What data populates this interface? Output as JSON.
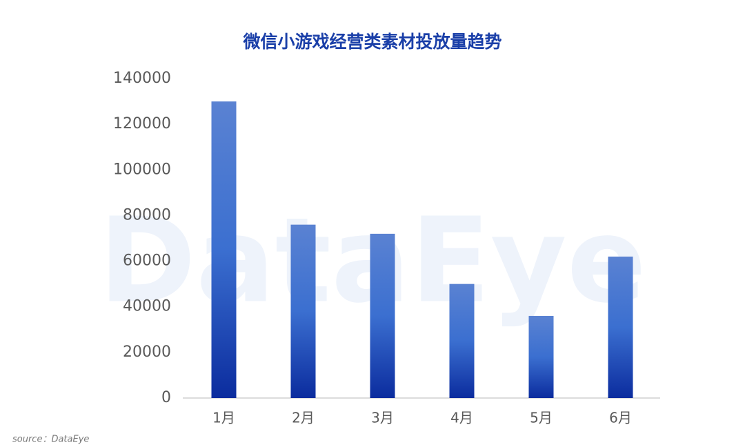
{
  "chart_data": {
    "type": "bar",
    "title": "微信小游戏经营类素材投放量趋势",
    "categories": [
      "1月",
      "2月",
      "3月",
      "4月",
      "5月",
      "6月"
    ],
    "values": [
      130000,
      76000,
      72000,
      50000,
      36000,
      62000
    ],
    "color": "#2a5bc4",
    "ylim": [
      0,
      140000
    ],
    "yticks": [
      0,
      20000,
      40000,
      60000,
      80000,
      100000,
      120000,
      140000
    ],
    "grid": false,
    "watermark": "DataEye",
    "source": "source：DataEye"
  }
}
